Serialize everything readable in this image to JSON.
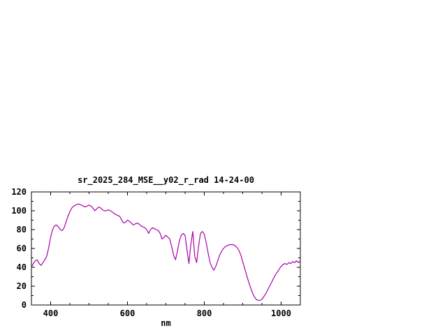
{
  "page": {
    "background": "#ffffff"
  },
  "chart_data": {
    "type": "line",
    "title": "sr_2025_284_MSE__y02_r_rad 14-24-00",
    "xlabel": "nm",
    "ylabel": "",
    "xlim": [
      350,
      1050
    ],
    "ylim": [
      0,
      120
    ],
    "xticks": [
      400,
      600,
      800,
      1000
    ],
    "yticks": [
      0,
      20,
      40,
      60,
      80,
      100,
      120
    ],
    "minor_xtick_step": 50,
    "minor_ytick_step": 10,
    "grid": false,
    "legend": "none",
    "line_color": "#aa00aa",
    "axis_color": "#000000",
    "series": [
      {
        "name": "sr_2025_284_MSE__y02_r_rad",
        "x": [
          350,
          355,
          360,
          365,
          370,
          375,
          380,
          385,
          390,
          395,
          400,
          405,
          410,
          415,
          420,
          425,
          430,
          435,
          440,
          445,
          450,
          455,
          460,
          465,
          470,
          475,
          480,
          485,
          490,
          495,
          500,
          505,
          510,
          515,
          520,
          525,
          530,
          535,
          540,
          545,
          550,
          555,
          560,
          565,
          570,
          575,
          580,
          585,
          590,
          595,
          600,
          605,
          610,
          615,
          620,
          625,
          630,
          635,
          640,
          645,
          650,
          655,
          660,
          665,
          670,
          675,
          680,
          685,
          690,
          695,
          700,
          705,
          710,
          715,
          720,
          725,
          730,
          735,
          740,
          745,
          750,
          755,
          760,
          765,
          770,
          775,
          780,
          785,
          790,
          795,
          800,
          805,
          810,
          815,
          820,
          825,
          830,
          835,
          840,
          845,
          850,
          855,
          860,
          865,
          870,
          875,
          880,
          885,
          890,
          895,
          900,
          905,
          910,
          915,
          920,
          925,
          930,
          935,
          940,
          945,
          950,
          955,
          960,
          965,
          970,
          975,
          980,
          985,
          990,
          995,
          1000,
          1005,
          1010,
          1015,
          1020,
          1025,
          1030,
          1035,
          1040,
          1045,
          1050
        ],
        "y": [
          40,
          44,
          47,
          48,
          44,
          42,
          45,
          48,
          52,
          61,
          72,
          80,
          84,
          85,
          83,
          80,
          79,
          82,
          88,
          94,
          99,
          103,
          105,
          106,
          107,
          107,
          106,
          105,
          104,
          105,
          106,
          105,
          103,
          100,
          102,
          104,
          103,
          101,
          100,
          100,
          101,
          100,
          99,
          97,
          96,
          95,
          94,
          90,
          87,
          88,
          90,
          89,
          87,
          85,
          86,
          87,
          86,
          84,
          83,
          82,
          80,
          76,
          80,
          82,
          81,
          80,
          79,
          76,
          70,
          72,
          74,
          72,
          70,
          62,
          53,
          48,
          57,
          68,
          74,
          76,
          74,
          58,
          44,
          65,
          78,
          52,
          45,
          62,
          76,
          78,
          75,
          66,
          55,
          45,
          40,
          37,
          41,
          47,
          53,
          57,
          60,
          62,
          63,
          64,
          64,
          64,
          63,
          61,
          58,
          53,
          46,
          39,
          32,
          25,
          19,
          13,
          9,
          6,
          5,
          5,
          6,
          9,
          12,
          16,
          20,
          24,
          28,
          32,
          35,
          38,
          41,
          43,
          44,
          43,
          45,
          44,
          46,
          45,
          47,
          45,
          47
        ]
      }
    ]
  }
}
